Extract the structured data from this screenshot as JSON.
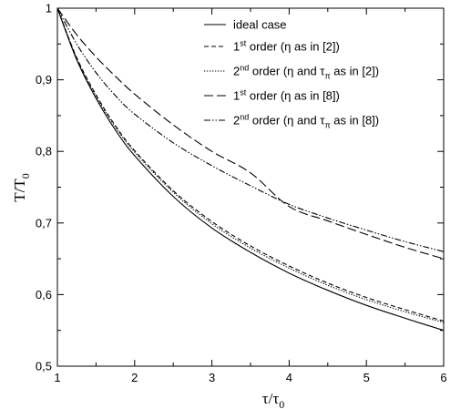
{
  "chart_data": {
    "type": "line",
    "xlabel": "τ/τ",
    "xlabel_sub": "0",
    "ylabel": "T/T",
    "ylabel_sub": "0",
    "xlim": [
      1,
      6
    ],
    "ylim": [
      0.5,
      1.0
    ],
    "x_ticks": [
      1,
      2,
      3,
      4,
      5,
      6
    ],
    "x_tick_labels": [
      "1",
      "2",
      "3",
      "4",
      "5",
      "6"
    ],
    "y_ticks": [
      0.5,
      0.6,
      0.7,
      0.8,
      0.9,
      1.0
    ],
    "y_tick_labels": [
      "0,5",
      "0,6",
      "0,7",
      "0,8",
      "0,9",
      "1"
    ],
    "grid": false,
    "legend_position": "top-right",
    "series": [
      {
        "legend": [
          "ideal case"
        ],
        "dash": "solid",
        "x": [
          1,
          1.25,
          1.5,
          1.75,
          2,
          2.5,
          3,
          3.5,
          4,
          4.5,
          5,
          5.5,
          6
        ],
        "y": [
          1.0,
          0.928,
          0.874,
          0.83,
          0.794,
          0.737,
          0.693,
          0.659,
          0.63,
          0.606,
          0.585,
          0.567,
          0.55
        ]
      },
      {
        "legend": [
          "1",
          "st",
          " order (η  as in [2])"
        ],
        "dash": "short-dash",
        "x": [
          1,
          1.25,
          1.5,
          1.75,
          2,
          2.5,
          3,
          3.5,
          4,
          4.5,
          5,
          5.5,
          6
        ],
        "y": [
          1.0,
          0.931,
          0.879,
          0.836,
          0.801,
          0.745,
          0.702,
          0.668,
          0.64,
          0.616,
          0.596,
          0.579,
          0.563
        ]
      },
      {
        "legend": [
          "2",
          "nd",
          " order (η  and  τ",
          "π",
          "  as in [2])"
        ],
        "dash": "dotted",
        "x": [
          1,
          1.25,
          1.5,
          1.75,
          2,
          2.5,
          3,
          3.5,
          4,
          4.5,
          5,
          5.5,
          6
        ],
        "y": [
          1.0,
          0.93,
          0.877,
          0.834,
          0.799,
          0.743,
          0.699,
          0.665,
          0.637,
          0.613,
          0.593,
          0.576,
          0.561
        ]
      },
      {
        "legend": [
          "1",
          "st",
          " order (η  as in [8])"
        ],
        "dash": "long-dash",
        "x": [
          1,
          1.25,
          1.5,
          1.75,
          2,
          2.5,
          3,
          3.5,
          4,
          4.5,
          5,
          5.5,
          6
        ],
        "y": [
          1.0,
          0.963,
          0.932,
          0.905,
          0.88,
          0.837,
          0.8,
          0.77,
          0.723,
          0.703,
          0.684,
          0.666,
          0.65
        ]
      },
      {
        "legend": [
          "2",
          "nd",
          " order (η  and  τ",
          "π",
          "  as in [8])"
        ],
        "dash": "dash-dot-dot",
        "x": [
          1,
          1.25,
          1.5,
          1.75,
          2,
          2.5,
          3,
          3.5,
          4,
          4.5,
          5,
          5.5,
          6
        ],
        "y": [
          1.0,
          0.95,
          0.91,
          0.878,
          0.852,
          0.812,
          0.78,
          0.752,
          0.726,
          0.707,
          0.69,
          0.674,
          0.66
        ]
      }
    ]
  }
}
